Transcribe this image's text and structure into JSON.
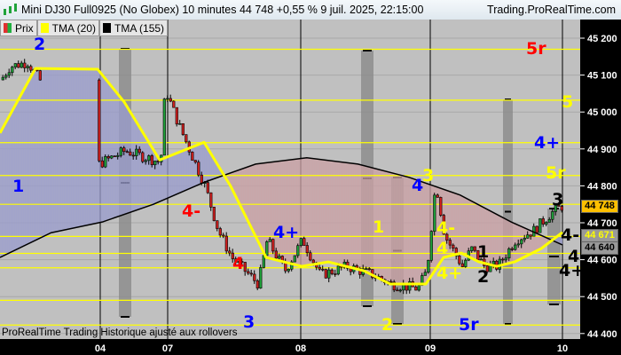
{
  "header": {
    "title": "Mini DJ30 Full0925 (No Globex) 10 minutes 44 748 +0,55 % 9 juil. 2025, 22:15:00",
    "site": "Trading.ProRealTime.com",
    "icon": "candlestick-icon"
  },
  "legend": [
    {
      "label": "Prix",
      "color": "#e03030"
    },
    {
      "label": "TMA (20)",
      "color": "#ffff00"
    },
    {
      "label": "TMA (155)",
      "color": "#000000"
    }
  ],
  "footer": "ProRealTime Trading  Historique ajusté aux rollovers",
  "price_tags": {
    "last": "44 748",
    "tma20": "44 671",
    "tma155": "44 640"
  },
  "colors": {
    "background": "#c0c0c0",
    "up": "#1fa33a",
    "down": "#d42020",
    "tma20": "#ffff00",
    "tma155": "#000000",
    "level_lines": "#ffff00",
    "fill_up": "#9a9ccc",
    "fill_down": "#c9a0a4"
  },
  "chart_data": {
    "type": "candlestick",
    "title": "Mini DJ30 Full0925 (No Globex) 10 minutes",
    "x_ticks": [
      "04",
      "07",
      "08",
      "09",
      "10"
    ],
    "y_ticks": [
      44400,
      44500,
      44600,
      44700,
      44800,
      44900,
      45000,
      45100,
      45200
    ],
    "ylim": [
      44380,
      45240
    ],
    "grid": true,
    "price_path": [
      45087,
      45123,
      45135,
      45099,
      44859,
      44895,
      44864,
      45063,
      44967,
      44883,
      44799,
      44678,
      44606,
      44534,
      44654,
      44570,
      44654,
      44558,
      44582,
      44558,
      44534,
      44522,
      44570,
      44810,
      44666,
      44582,
      44630,
      44582,
      44582,
      44654,
      44678,
      44726,
      44748
    ],
    "tma20_path": [
      44943,
      45118,
      45116,
      45027,
      44870,
      44918,
      44799,
      44606,
      44582,
      44594,
      44570,
      44534,
      44534,
      44606,
      44618,
      44594,
      44582,
      44594,
      44630,
      44674
    ],
    "tma155_path": [
      44606,
      44673,
      44702,
      44750,
      44810,
      44859,
      44876,
      44859,
      44823,
      44775,
      44702,
      44640
    ],
    "level_lines": [
      45170,
      45032,
      44917,
      44828,
      44750,
      44663,
      44617,
      44578,
      44490,
      44423
    ],
    "annotations": [
      {
        "text": "2",
        "color": "#0000ff"
      },
      {
        "text": "1",
        "color": "#0000ff"
      },
      {
        "text": "4-",
        "color": "#ff0000"
      },
      {
        "text": "4",
        "color": "#ff0000"
      },
      {
        "text": "3",
        "color": "#0000ff"
      },
      {
        "text": "4+",
        "color": "#0000ff"
      },
      {
        "text": "1",
        "color": "#ffff00"
      },
      {
        "text": "2",
        "color": "#ffff00"
      },
      {
        "text": "3",
        "color": "#ffff00"
      },
      {
        "text": "4",
        "color": "#0000ff"
      },
      {
        "text": "4-",
        "color": "#ffff00"
      },
      {
        "text": "4",
        "color": "#ffff00"
      },
      {
        "text": "4+",
        "color": "#ffff00"
      },
      {
        "text": "1",
        "color": "#000000"
      },
      {
        "text": "2",
        "color": "#000000"
      },
      {
        "text": "5r",
        "color": "#0000ff"
      },
      {
        "text": "5r",
        "color": "#ff0000"
      },
      {
        "text": "5",
        "color": "#ffff00"
      },
      {
        "text": "4+",
        "color": "#0000ff"
      },
      {
        "text": "5r",
        "color": "#ffff00"
      },
      {
        "text": "3",
        "color": "#000000"
      },
      {
        "text": "4-",
        "color": "#000000"
      },
      {
        "text": "4",
        "color": "#000000"
      },
      {
        "text": "4+",
        "color": "#000000"
      }
    ]
  }
}
